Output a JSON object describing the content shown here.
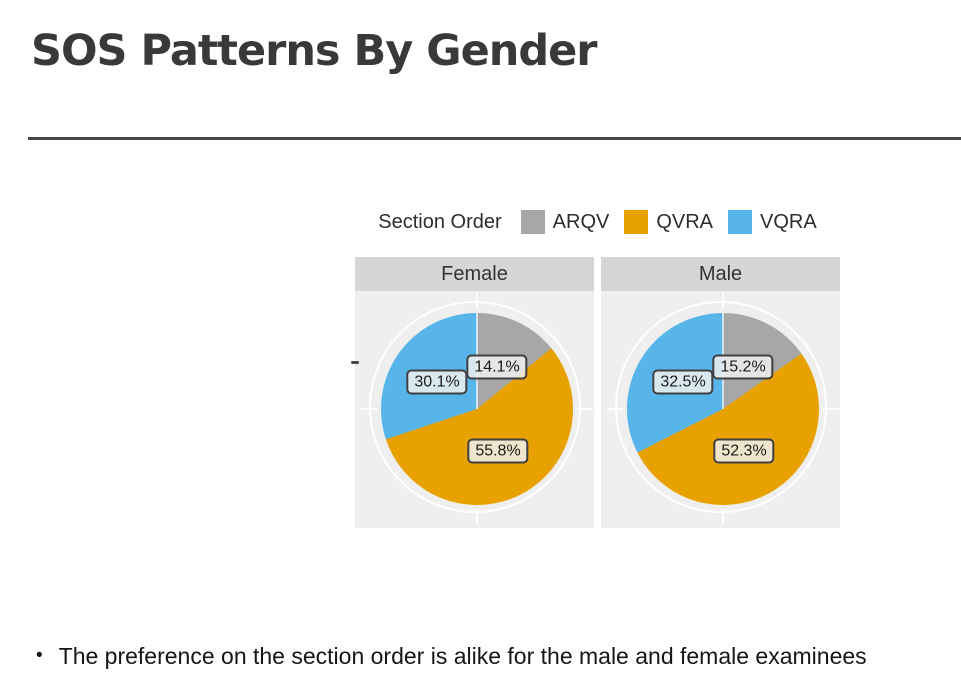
{
  "title": "SOS Patterns By Gender",
  "legend": {
    "title": "Section Order",
    "items": [
      {
        "label": "ARQV",
        "color": "#a7a7a7"
      },
      {
        "label": "QVRA",
        "color": "#e8a200"
      },
      {
        "label": "VQRA",
        "color": "#58b5ea"
      }
    ]
  },
  "chart_data": {
    "type": "pie",
    "title": "SOS Patterns By Gender",
    "legend_title": "Section Order",
    "legend_position": "top",
    "direction": "clockwise",
    "start_angle_deg": 0,
    "categories": [
      "ARQV",
      "QVRA",
      "VQRA"
    ],
    "facets": [
      {
        "label": "Female",
        "slices": [
          {
            "name": "ARQV",
            "value": 14.1,
            "label": "14.1%",
            "color": "#a7a7a7"
          },
          {
            "name": "QVRA",
            "value": 55.8,
            "label": "55.8%",
            "color": "#e8a200"
          },
          {
            "name": "VQRA",
            "value": 30.1,
            "label": "30.1%",
            "color": "#58b5ea"
          }
        ]
      },
      {
        "label": "Male",
        "slices": [
          {
            "name": "ARQV",
            "value": 15.2,
            "label": "15.2%",
            "color": "#a7a7a7"
          },
          {
            "name": "QVRA",
            "value": 52.3,
            "label": "52.3%",
            "color": "#e8a200"
          },
          {
            "name": "VQRA",
            "value": 32.5,
            "label": "32.5%",
            "color": "#58b5ea"
          }
        ]
      }
    ]
  },
  "bullet": {
    "marker": "•",
    "text": "The preference on the section order is alike for the male and female examinees"
  },
  "colors": {
    "panel_background": "#efefef",
    "strip_background": "#d6d6d6",
    "title_text": "#3b3838",
    "divider": "#474747"
  }
}
